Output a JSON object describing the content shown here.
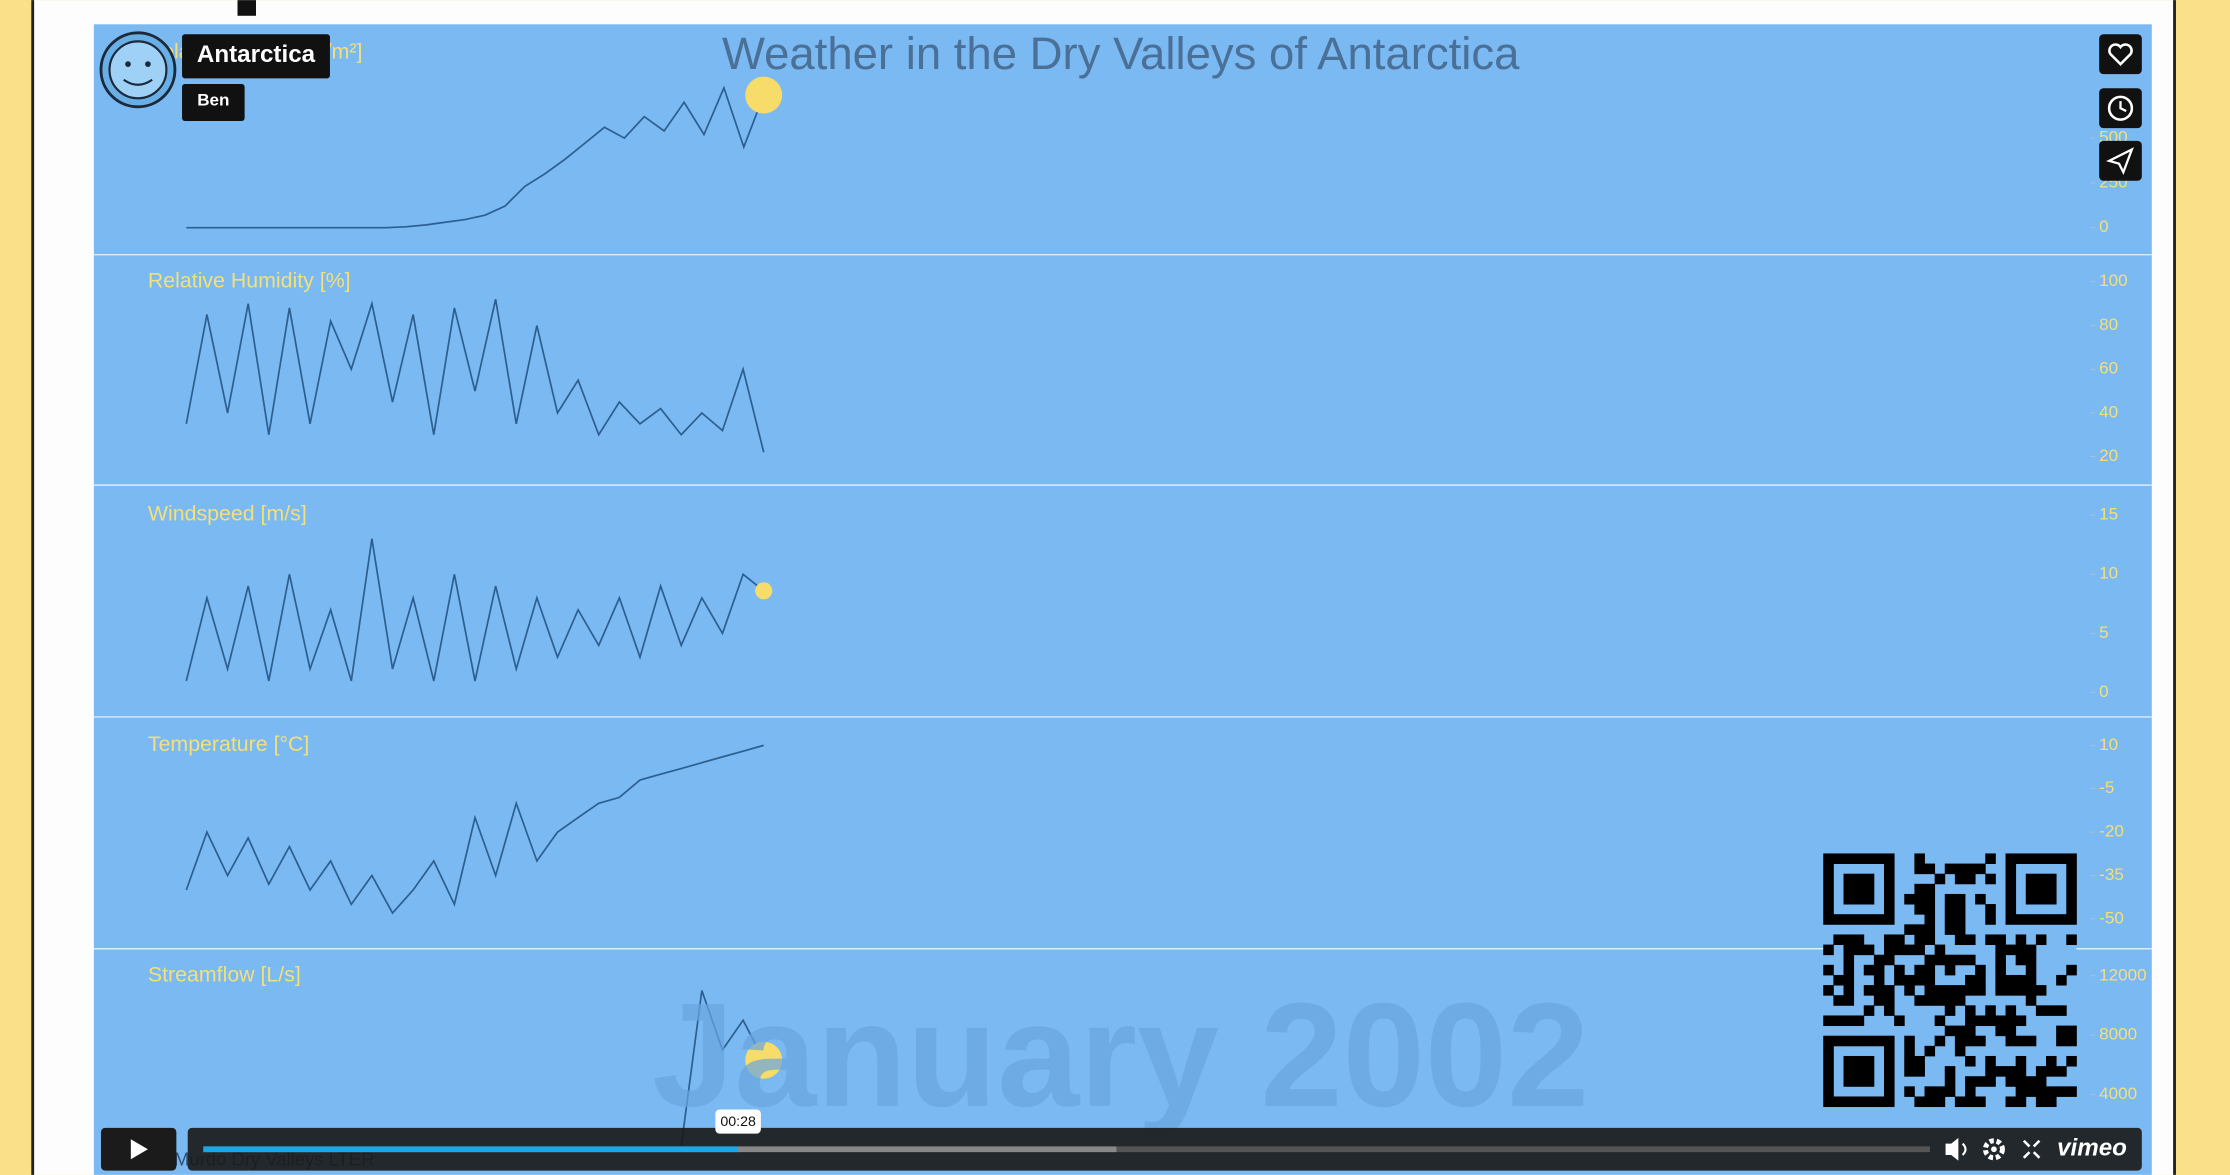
{
  "video": {
    "title": "Antarctica",
    "author": "Ben",
    "time": "00:28",
    "brand": "vimeo",
    "caption": "McMurdo Dry Valleys LTER",
    "heading": "Weather in the Dry Valleys of Antarctica",
    "date": "January 2002"
  },
  "chart_data": [
    {
      "type": "line",
      "title": "Solar Radiation [W/m²]",
      "color": "#2c5f90",
      "ylim": [
        0,
        1000
      ],
      "yticks": [
        0,
        250,
        500
      ],
      "values": [
        0,
        0,
        0,
        0,
        0,
        0,
        0,
        0,
        0,
        0,
        0,
        5,
        15,
        30,
        45,
        70,
        120,
        230,
        300,
        380,
        470,
        560,
        500,
        620,
        540,
        700,
        520,
        780,
        450,
        740
      ]
    },
    {
      "type": "line",
      "title": "Relative Humidity [%]",
      "color": "#2c5f90",
      "ylim": [
        20,
        100
      ],
      "yticks": [
        100,
        80,
        60,
        40,
        20
      ],
      "values": [
        35,
        85,
        40,
        90,
        30,
        88,
        35,
        82,
        60,
        90,
        45,
        85,
        30,
        88,
        50,
        92,
        35,
        80,
        40,
        55,
        30,
        45,
        35,
        42,
        30,
        40,
        32,
        60,
        22
      ]
    },
    {
      "type": "line",
      "title": "Windspeed [m/s]",
      "color": "#2c5f90",
      "ylim": [
        0,
        15
      ],
      "yticks": [
        15,
        10,
        5,
        0
      ],
      "values": [
        1,
        8,
        2,
        9,
        1,
        10,
        2,
        7,
        1,
        13,
        2,
        8,
        1,
        10,
        1,
        9,
        2,
        8,
        3,
        7,
        4,
        8,
        3,
        9,
        4,
        8,
        5,
        10,
        8.6
      ]
    },
    {
      "type": "line",
      "title": "Temperature [°C]",
      "color": "#2c5f90",
      "ylim": [
        -50,
        10
      ],
      "yticks": [
        10,
        -5,
        -20,
        -35,
        -50
      ],
      "values": [
        -40,
        -20,
        -35,
        -22,
        -38,
        -25,
        -40,
        -30,
        -45,
        -35,
        -48,
        -40,
        -30,
        -45,
        -15,
        -35,
        -10,
        -30,
        -20,
        -15,
        -10,
        -8,
        -2,
        0,
        2,
        4,
        6,
        8,
        10
      ]
    },
    {
      "type": "line",
      "title": "Streamflow [L/s]",
      "color": "#2c5f90",
      "ylim": [
        0,
        12000
      ],
      "yticks": [
        12000,
        8000,
        4000
      ],
      "values": [
        null,
        null,
        null,
        null,
        null,
        null,
        null,
        null,
        null,
        null,
        null,
        null,
        null,
        null,
        null,
        null,
        null,
        null,
        null,
        null,
        null,
        null,
        null,
        null,
        500,
        11000,
        7000,
        9000,
        6300
      ]
    }
  ]
}
